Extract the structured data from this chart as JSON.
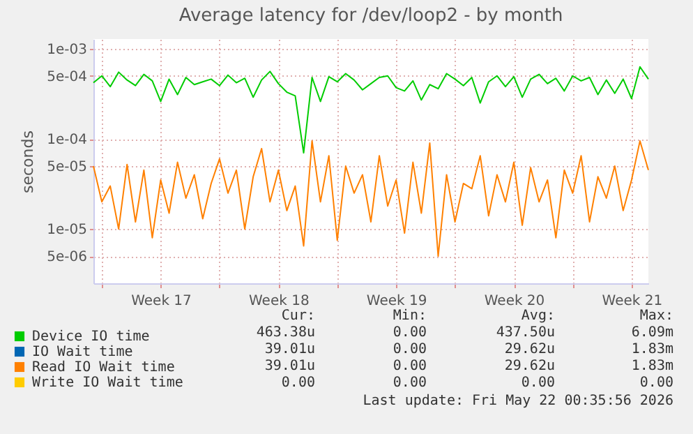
{
  "chart_data": {
    "type": "line",
    "title": "Average latency for /dev/loop2 - by month",
    "ylabel": "seconds",
    "log": "y",
    "grid": true,
    "legend": "bottom",
    "x": [
      "2026-04-19T12:00",
      "2026-04-20T00:00",
      "2026-04-20T12:00",
      "2026-04-21T00:00",
      "2026-04-21T12:00",
      "2026-04-22T00:00",
      "2026-04-22T12:00",
      "2026-04-23T00:00",
      "2026-04-23T12:00",
      "2026-04-24T00:00",
      "2026-04-24T12:00",
      "2026-04-25T00:00",
      "2026-04-25T12:00",
      "2026-04-26T00:00",
      "2026-04-26T12:00",
      "2026-04-27T00:00",
      "2026-04-27T12:00",
      "2026-04-28T00:00",
      "2026-04-28T12:00",
      "2026-04-29T00:00",
      "2026-04-29T12:00",
      "2026-04-30T00:00",
      "2026-04-30T12:00",
      "2026-05-01T00:00",
      "2026-05-01T12:00",
      "2026-05-02T00:00",
      "2026-05-02T12:00",
      "2026-05-03T00:00",
      "2026-05-03T12:00",
      "2026-05-04T00:00",
      "2026-05-04T12:00",
      "2026-05-05T00:00",
      "2026-05-05T12:00",
      "2026-05-06T00:00",
      "2026-05-06T12:00",
      "2026-05-07T00:00",
      "2026-05-07T12:00",
      "2026-05-08T00:00",
      "2026-05-08T12:00",
      "2026-05-09T00:00",
      "2026-05-09T12:00",
      "2026-05-10T00:00",
      "2026-05-10T12:00",
      "2026-05-11T00:00",
      "2026-05-11T12:00",
      "2026-05-12T00:00",
      "2026-05-12T12:00",
      "2026-05-13T00:00",
      "2026-05-13T12:00",
      "2026-05-14T00:00",
      "2026-05-14T12:00",
      "2026-05-15T00:00",
      "2026-05-15T12:00",
      "2026-05-16T00:00",
      "2026-05-16T12:00",
      "2026-05-17T00:00",
      "2026-05-17T12:00",
      "2026-05-18T00:00",
      "2026-05-18T12:00",
      "2026-05-19T00:00",
      "2026-05-19T12:00",
      "2026-05-20T00:00",
      "2026-05-20T12:00",
      "2026-05-21T00:00",
      "2026-05-21T12:00",
      "2026-05-22T00:00",
      "2026-05-22T12:00"
    ],
    "xlim": [
      "2026-04-19T12:00",
      "2026-05-22T12:00"
    ],
    "xticks": [
      {
        "value": "2026-04-20T00:00",
        "label": null
      },
      {
        "value": "2026-04-23T12:00",
        "label": "Week 17"
      },
      {
        "value": "2026-04-27T00:00",
        "label": null
      },
      {
        "value": "2026-04-30T12:00",
        "label": "Week 18"
      },
      {
        "value": "2026-05-04T00:00",
        "label": null
      },
      {
        "value": "2026-05-07T12:00",
        "label": "Week 19"
      },
      {
        "value": "2026-05-11T00:00",
        "label": null
      },
      {
        "value": "2026-05-14T12:00",
        "label": "Week 20"
      },
      {
        "value": "2026-05-18T00:00",
        "label": null
      },
      {
        "value": "2026-05-21T12:00",
        "label": "Week 21"
      }
    ],
    "ylim": [
      2.5e-06,
      0.00128
    ],
    "yticks": [
      {
        "value": 0.001,
        "label": "1e-03"
      },
      {
        "value": 0.0005,
        "label": "5e-04"
      },
      {
        "value": 0.0001,
        "label": "1e-04"
      },
      {
        "value": 5e-05,
        "label": "5e-05"
      },
      {
        "value": 1e-05,
        "label": "1e-05"
      },
      {
        "value": 5e-06,
        "label": "5e-06"
      }
    ],
    "series": [
      {
        "name": "Device IO time",
        "color": "#00cc00",
        "values": [
          0.00042,
          0.0005,
          0.00038,
          0.00055,
          0.00045,
          0.00039,
          0.00052,
          0.00044,
          0.00026,
          0.00046,
          0.00031,
          0.00048,
          0.0004,
          0.00043,
          0.00046,
          0.00039,
          0.00051,
          0.00042,
          0.00047,
          0.00029,
          0.00045,
          0.00056,
          0.00041,
          0.00033,
          0.0003,
          7e-05,
          0.00048,
          0.00026,
          0.00049,
          0.00043,
          0.00053,
          0.00045,
          0.00035,
          0.00041,
          0.00048,
          0.0005,
          0.00037,
          0.00034,
          0.00044,
          0.00027,
          0.0004,
          0.00036,
          0.00053,
          0.00046,
          0.00039,
          0.00048,
          0.00025,
          0.00043,
          0.0005,
          0.00038,
          0.00049,
          0.00029,
          0.00046,
          0.00052,
          0.00041,
          0.00047,
          0.00034,
          0.0005,
          0.00044,
          0.00048,
          0.00031,
          0.00045,
          0.00032,
          0.00046,
          0.00028,
          0.00063,
          0.00046
        ]
      },
      {
        "name": "IO Wait time",
        "color": "#0066b3",
        "values": [
          null,
          null,
          null,
          null,
          null,
          null,
          null,
          null,
          null,
          null,
          null,
          null,
          null,
          null,
          null,
          null,
          null,
          null,
          null,
          null,
          null,
          null,
          null,
          null,
          null,
          null,
          null,
          null,
          null,
          null,
          null,
          null,
          null,
          null,
          null,
          null,
          null,
          null,
          null,
          null,
          null,
          null,
          null,
          null,
          null,
          null,
          null,
          null,
          null,
          null,
          null,
          null,
          null,
          null,
          null,
          null,
          null,
          null,
          null,
          null,
          null,
          null,
          null,
          null,
          null,
          null,
          null
        ]
      },
      {
        "name": "Read IO Wait time",
        "color": "#ff8000",
        "values": [
          5e-05,
          2e-05,
          3e-05,
          1e-05,
          5.2e-05,
          1.2e-05,
          4.5e-05,
          8e-06,
          3.5e-05,
          1.5e-05,
          5.5e-05,
          2.2e-05,
          4e-05,
          1.3e-05,
          3.2e-05,
          6e-05,
          2.5e-05,
          4.5e-05,
          1e-05,
          3.8e-05,
          7.8e-05,
          2e-05,
          4.5e-05,
          1.6e-05,
          3e-05,
          6.5e-06,
          9.5e-05,
          2e-05,
          6.5e-05,
          7.5e-06,
          5e-05,
          2.5e-05,
          4e-05,
          1.2e-05,
          6.5e-05,
          1.8e-05,
          3.5e-05,
          9e-06,
          5.5e-05,
          1.5e-05,
          9e-05,
          5e-06,
          4e-05,
          1.2e-05,
          3.2e-05,
          2.8e-05,
          6.5e-05,
          1.4e-05,
          4e-05,
          2e-05,
          5.5e-05,
          1.1e-05,
          4.8e-05,
          2e-05,
          3.5e-05,
          8e-06,
          4.5e-05,
          2.5e-05,
          6.5e-05,
          1.2e-05,
          3.8e-05,
          2.2e-05,
          5e-05,
          1.6e-05,
          3.5e-05,
          9.5e-05,
          4.5e-05
        ]
      },
      {
        "name": "Write IO Wait time",
        "color": "#ffcc00",
        "values": [
          null,
          null,
          null,
          null,
          null,
          null,
          null,
          null,
          null,
          null,
          null,
          null,
          null,
          null,
          null,
          null,
          null,
          null,
          null,
          null,
          null,
          null,
          null,
          null,
          null,
          null,
          null,
          null,
          null,
          null,
          null,
          null,
          null,
          null,
          null,
          null,
          null,
          null,
          null,
          null,
          null,
          null,
          null,
          null,
          null,
          null,
          null,
          null,
          null,
          null,
          null,
          null,
          null,
          null,
          null,
          null,
          null,
          null,
          null,
          null,
          null,
          null,
          null,
          null,
          null,
          null,
          null
        ]
      }
    ],
    "annotations": [
      "Cur:",
      "Min:",
      "Avg:",
      "Max:",
      "463.38u",
      "0.00",
      "437.50u",
      "6.09m",
      "39.01u",
      "0.00",
      "29.62u",
      "1.83m",
      "39.01u",
      "0.00",
      "29.62u",
      "1.83m",
      "0.00",
      "0.00",
      "0.00",
      "0.00",
      "Last update: Fri May 22 00:35:56 2026"
    ]
  }
}
